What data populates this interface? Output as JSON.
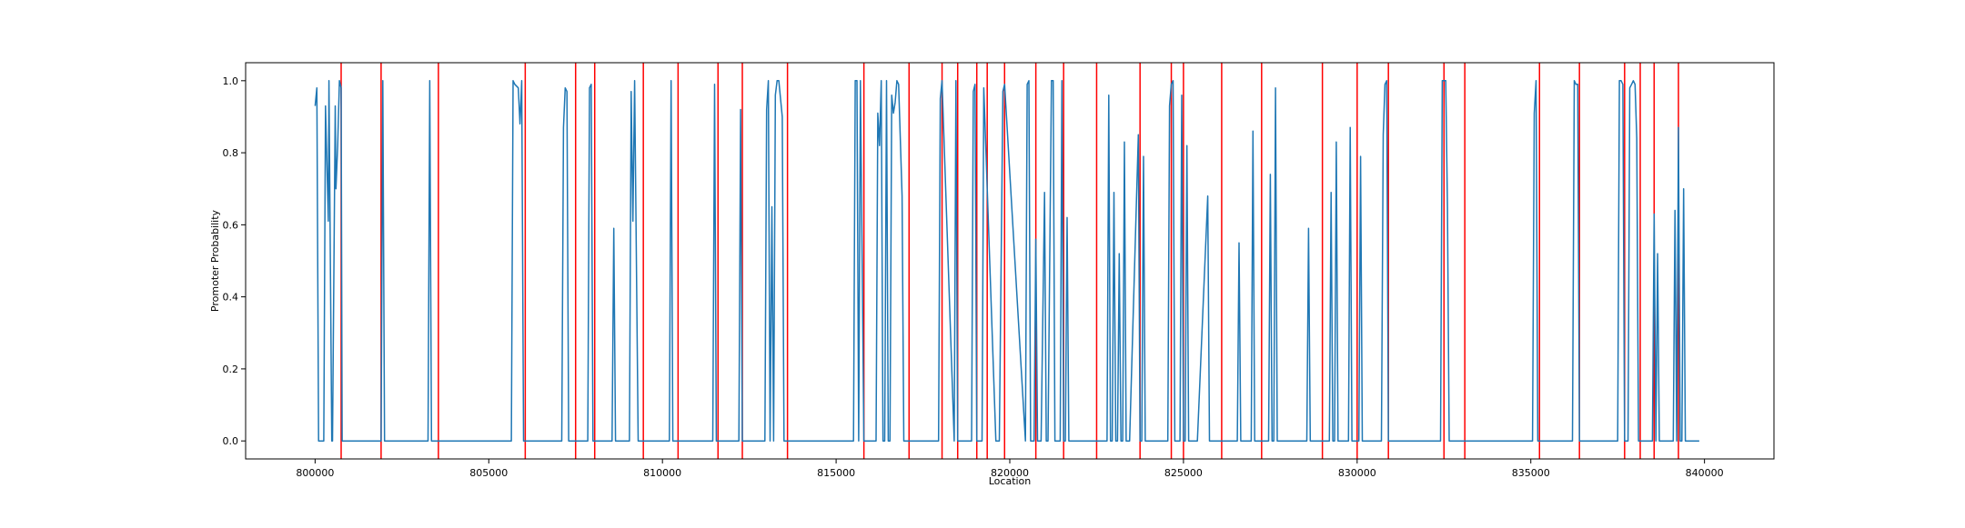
{
  "chart_data": {
    "type": "line",
    "title": "",
    "xlabel": "Location",
    "ylabel": "Promoter Probability",
    "xlim": [
      798000,
      842000
    ],
    "ylim": [
      -0.05,
      1.05
    ],
    "grid": false,
    "x_ticks": [
      800000,
      805000,
      810000,
      815000,
      820000,
      825000,
      830000,
      835000,
      840000
    ],
    "x_tick_labels": [
      "800000",
      "805000",
      "810000",
      "815000",
      "820000",
      "825000",
      "830000",
      "835000",
      "840000"
    ],
    "y_ticks": [
      0.0,
      0.2,
      0.4,
      0.6,
      0.8,
      1.0
    ],
    "y_tick_labels": [
      "0.0",
      "0.2",
      "0.4",
      "0.6",
      "0.8",
      "1.0"
    ],
    "series": [
      {
        "color": "#1f77b4",
        "x": [
          800000,
          800050,
          800100,
          800150,
          800250,
          800300,
          800380,
          800400,
          800480,
          800500,
          800580,
          800600,
          800650,
          800700,
          800750,
          800780,
          800850,
          801900,
          801950,
          802000,
          802050,
          803250,
          803300,
          803350,
          803400,
          805650,
          805700,
          805750,
          805850,
          805900,
          805950,
          806000,
          807100,
          807150,
          807200,
          807250,
          807300,
          807350,
          807450,
          807500,
          807850,
          807900,
          807950,
          808000,
          808550,
          808600,
          808650,
          809050,
          809100,
          809150,
          809200,
          809300,
          809400,
          810200,
          810250,
          810300,
          811450,
          811500,
          811550,
          812200,
          812250,
          812300,
          812950,
          813000,
          813050,
          813100,
          813150,
          813200,
          813250,
          813300,
          813350,
          813450,
          813500,
          813550,
          815500,
          815550,
          815600,
          815650,
          815700,
          815800,
          815850,
          815900,
          815950,
          816000,
          816150,
          816200,
          816250,
          816300,
          816350,
          816400,
          816450,
          816500,
          816550,
          816600,
          816650,
          816700,
          816750,
          816800,
          816900,
          816950,
          817000,
          817050,
          817950,
          818000,
          818050,
          818400,
          818450,
          818500,
          818900,
          818950,
          819000,
          819050,
          819200,
          819250,
          819600,
          819650,
          819700,
          819800,
          819850,
          820450,
          820500,
          820550,
          820600,
          820700,
          820750,
          820800,
          820850,
          820900,
          821000,
          821050,
          821100,
          821200,
          821250,
          821300,
          821350,
          821450,
          821500,
          821550,
          821600,
          821650,
          821700,
          821750,
          821800,
          821850,
          821900,
          821950,
          822800,
          822850,
          822900,
          822950,
          823000,
          823050,
          823100,
          823150,
          823200,
          823250,
          823300,
          823350,
          823400,
          823450,
          823700,
          823750,
          823800,
          823850,
          823900,
          823950,
          824550,
          824600,
          824650,
          824700,
          824750,
          824900,
          824950,
          825000,
          825050,
          825100,
          825150,
          825200,
          825250,
          825300,
          825400,
          825700,
          825750,
          825800,
          826550,
          826600,
          826650,
          826950,
          827000,
          827050,
          827450,
          827500,
          827550,
          827600,
          827650,
          827700,
          827750,
          827800,
          828550,
          828600,
          828650,
          829200,
          829250,
          829300,
          829350,
          829400,
          829450,
          829750,
          829800,
          829850,
          830050,
          830100,
          830150,
          830700,
          830750,
          830800,
          830850,
          830900,
          832400,
          832450,
          832500,
          832550,
          832600,
          832650,
          832700,
          835050,
          835100,
          835150,
          835200,
          836200,
          836250,
          836300,
          836350,
          836400,
          837500,
          837550,
          837600,
          837650,
          837700,
          837800,
          837850,
          837900,
          837950,
          838000,
          838050,
          838100,
          838200,
          838250,
          838500,
          838550,
          838600,
          838650,
          838700,
          839100,
          839150,
          839200,
          839250,
          839300,
          839350,
          839400,
          839450,
          839500,
          839600,
          839850
        ],
        "y": [
          0.93,
          0.98,
          0.0,
          0.0,
          0.0,
          0.93,
          0.61,
          1.0,
          0.0,
          0.0,
          0.93,
          0.7,
          0.82,
          1.0,
          0.98,
          0.0,
          0.0,
          0.0,
          1.0,
          0.0,
          0.0,
          0.0,
          1.0,
          0.0,
          0.0,
          0.0,
          1.0,
          0.99,
          0.98,
          0.88,
          1.0,
          0.0,
          0.0,
          0.87,
          0.98,
          0.97,
          0.0,
          0.0,
          0.0,
          0.0,
          0.0,
          0.98,
          0.99,
          0.0,
          0.0,
          0.59,
          0.0,
          0.0,
          0.97,
          0.61,
          1.0,
          0.0,
          0.0,
          0.0,
          1.0,
          0.0,
          0.0,
          0.99,
          0.0,
          0.0,
          0.92,
          0.0,
          0.0,
          0.92,
          1.0,
          0.0,
          0.65,
          0.0,
          0.96,
          1.0,
          1.0,
          0.9,
          0.0,
          0.0,
          0.0,
          1.0,
          1.0,
          0.0,
          1.0,
          0.0,
          0.0,
          0.0,
          0.0,
          0.0,
          0.0,
          0.91,
          0.82,
          1.0,
          0.0,
          0.0,
          1.0,
          0.0,
          0.0,
          0.96,
          0.91,
          0.94,
          1.0,
          0.99,
          0.68,
          0.0,
          0.0,
          0.0,
          0.0,
          0.95,
          1.0,
          0.0,
          1.0,
          0.0,
          0.0,
          0.97,
          0.99,
          0.0,
          0.0,
          0.98,
          0.0,
          0.0,
          0.0,
          0.97,
          0.99,
          0.0,
          0.99,
          1.0,
          0.0,
          0.0,
          0.56,
          0.0,
          0.0,
          0.0,
          0.69,
          0.0,
          0.0,
          1.0,
          1.0,
          0.0,
          0.0,
          0.0,
          1.0,
          0.0,
          0.0,
          0.62,
          0.0,
          0.0,
          0.0,
          0.0,
          0.0,
          0.0,
          0.0,
          0.96,
          0.0,
          0.0,
          0.69,
          0.0,
          0.0,
          0.52,
          0.0,
          0.0,
          0.83,
          0.0,
          0.0,
          0.0,
          0.85,
          0.0,
          0.0,
          0.79,
          0.0,
          0.0,
          0.0,
          0.93,
          0.99,
          1.0,
          0.0,
          0.0,
          0.96,
          0.0,
          0.0,
          0.82,
          0.0,
          0.0,
          0.0,
          0.0,
          0.0,
          0.68,
          0.0,
          0.0,
          0.0,
          0.55,
          0.0,
          0.0,
          0.86,
          0.0,
          0.0,
          0.74,
          0.0,
          0.0,
          0.98,
          0.0,
          0.0,
          0.0,
          0.0,
          0.59,
          0.0,
          0.0,
          0.69,
          0.0,
          0.0,
          0.83,
          0.0,
          0.0,
          0.87,
          0.0,
          0.0,
          0.79,
          0.0,
          0.0,
          0.85,
          0.99,
          1.0,
          0.0,
          0.0,
          1.0,
          1.0,
          1.0,
          0.65,
          0.0,
          0.0,
          0.0,
          0.91,
          1.0,
          0.0,
          0.0,
          1.0,
          0.99,
          0.99,
          0.0,
          0.0,
          1.0,
          1.0,
          0.99,
          0.0,
          0.0,
          0.98,
          0.99,
          1.0,
          0.99,
          0.84,
          0.0,
          0.0,
          0.0,
          0.0,
          0.63,
          0.0,
          0.52,
          0.0,
          0.0,
          0.64,
          0.0,
          0.87,
          0.0,
          0.0,
          0.7,
          0.0,
          0.0,
          0.0,
          0.0
        ]
      }
    ],
    "vertical_lines": {
      "color": "#ff0000",
      "x": [
        800750,
        801900,
        803550,
        806050,
        807500,
        808050,
        809450,
        810450,
        811600,
        812300,
        813600,
        815800,
        817100,
        818050,
        818500,
        819050,
        819350,
        819850,
        820750,
        821550,
        822500,
        823750,
        824650,
        825000,
        826100,
        827250,
        829000,
        830000,
        830900,
        832500,
        833100,
        835250,
        836400,
        837700,
        838150,
        838550,
        839250
      ]
    }
  }
}
